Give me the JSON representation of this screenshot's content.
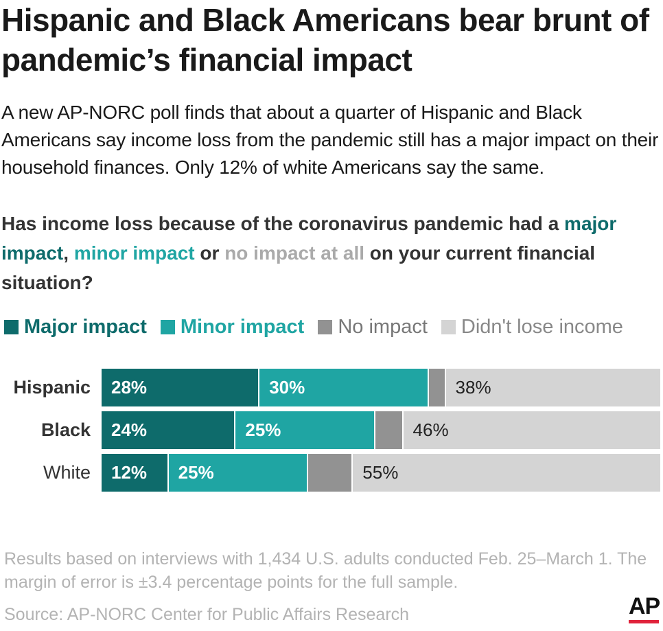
{
  "title": "Hispanic and Black Americans bear brunt of pandemic’s financial impact",
  "subtitle": "A new AP-NORC poll finds that about a quarter of Hispanic and Black Americans say income loss from the pandemic still has a major impact on their household finances. Only 12% of white Americans say the same.",
  "question": {
    "prefix": "Has income loss because of the coronavirus pandemic had a ",
    "major": "major impact",
    "sep1": ", ",
    "minor": "minor impact",
    "sep2": " or ",
    "none": "no impact at all",
    "suffix": " on your current financial situation?"
  },
  "colors": {
    "major": "#0e6b6b",
    "minor": "#1fa5a3",
    "none": "#929292",
    "didnt_lose": "#d4d4d4"
  },
  "chart_data": {
    "type": "bar",
    "orientation": "horizontal",
    "stacked": true,
    "title": "Has income loss because of the coronavirus pandemic had a major impact, minor impact or no impact at all on your current financial situation?",
    "categories": [
      "Hispanic",
      "Black",
      "White"
    ],
    "series": [
      {
        "name": "Major impact",
        "values": [
          28,
          24,
          12
        ],
        "labels": [
          "28%",
          "24%",
          "12%"
        ]
      },
      {
        "name": "Minor impact",
        "values": [
          30,
          25,
          25
        ],
        "labels": [
          "30%",
          "25%",
          "25%"
        ]
      },
      {
        "name": "No impact",
        "values": [
          3,
          5,
          8
        ],
        "labels": [
          "",
          "",
          ""
        ]
      },
      {
        "name": "Didn't lose income",
        "values": [
          38,
          46,
          55
        ],
        "labels": [
          "38%",
          "46%",
          "55%"
        ]
      }
    ],
    "xlim": [
      0,
      100
    ],
    "legend": "top"
  },
  "legend": [
    {
      "label": "Major impact",
      "color": "#0e6b6b",
      "text_color": "#0e6b6b",
      "bold": true
    },
    {
      "label": "Minor impact",
      "color": "#1fa5a3",
      "text_color": "#1fa5a3",
      "bold": true
    },
    {
      "label": "No impact",
      "color": "#929292",
      "text_color": "#777777",
      "bold": false
    },
    {
      "label": "Didn't lose income",
      "color": "#d4d4d4",
      "text_color": "#888888",
      "bold": false
    }
  ],
  "note": "Results based on interviews with 1,434 U.S. adults conducted Feb. 25–March 1. The margin of error is ±3.4 percentage points for the full sample.",
  "source": "Source: AP-NORC Center for Public Affairs Research",
  "logo_text": "AP"
}
